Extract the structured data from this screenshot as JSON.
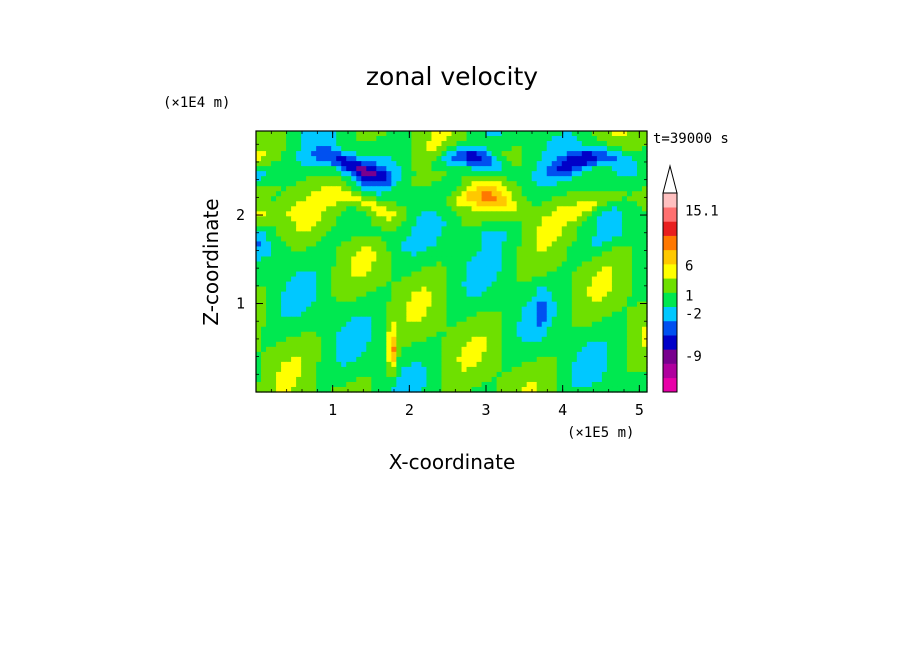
{
  "chart_data": {
    "type": "heatmap",
    "title": "zonal velocity",
    "xlabel": "X-coordinate",
    "ylabel": "Z-coordinate",
    "x_unit": "(×1E5 m)",
    "y_unit": "(×1E4 m)",
    "time_label": "t=39000 s",
    "xlim": [
      0,
      5.1
    ],
    "ylim": [
      0,
      2.95
    ],
    "x_ticks": [
      "1",
      "2",
      "3",
      "4",
      "5"
    ],
    "x_tick_values": [
      1,
      2,
      3,
      4,
      5
    ],
    "y_ticks": [
      "1",
      "2"
    ],
    "y_tick_values": [
      1,
      2
    ],
    "colorbar": {
      "labels": [
        "15.1",
        "6",
        "1",
        "-2",
        "-9"
      ],
      "label_values": [
        15.1,
        6,
        1,
        -2,
        -9
      ],
      "colors": [
        "#e800a8",
        "#b0009e",
        "#78008e",
        "#0000c8",
        "#0050f0",
        "#00c8ff",
        "#00e850",
        "#6ee000",
        "#ffff00",
        "#ffc800",
        "#ff7800",
        "#e81e1e",
        "#ff7070",
        "#ffc0c0"
      ],
      "vmin": -15,
      "vmax": 18
    },
    "grid": false,
    "colorscale": "blue-to-red",
    "value_range": [
      -15,
      18
    ],
    "features": [
      {
        "kind": "band",
        "z": 2.55,
        "value": -8
      },
      {
        "kind": "band",
        "z": 2.1,
        "value": 5
      },
      {
        "kind": "band",
        "z": 1.7,
        "value": -2
      },
      {
        "kind": "peak",
        "x": 1.78,
        "z": 0.45,
        "value": 8
      },
      {
        "kind": "peak",
        "x": 3.72,
        "z": 0.9,
        "value": -3
      }
    ]
  }
}
